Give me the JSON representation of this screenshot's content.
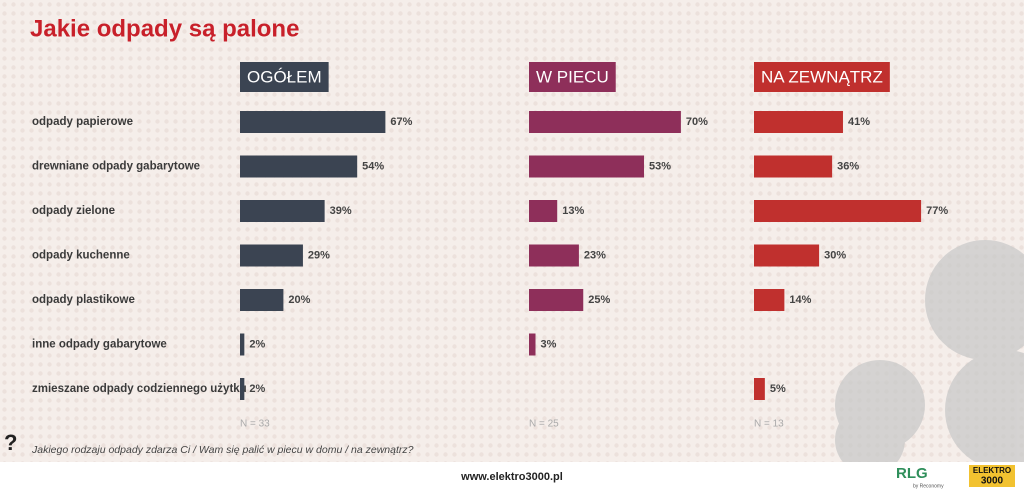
{
  "chart_data": {
    "type": "bar",
    "orientation": "horizontal",
    "title": "Jakie odpady są palone",
    "categories": [
      "odpady papierowe",
      "drewniane odpady gabarytowe",
      "odpady zielone",
      "odpady kuchenne",
      "odpady plastikowe",
      "inne odpady gabarytowe",
      "zmieszane odpady codziennego użytku"
    ],
    "series": [
      {
        "name": "OGÓŁEM",
        "color": "#3b4452",
        "n_label": "N = 33",
        "values": [
          67,
          54,
          39,
          29,
          20,
          2,
          2
        ],
        "value_labels": [
          "67%",
          "54%",
          "39%",
          "29%",
          "20%",
          "2%",
          "2%"
        ]
      },
      {
        "name": "W PIECU",
        "color": "#8e2f5a",
        "n_label": "N = 25",
        "values": [
          70,
          53,
          13,
          23,
          25,
          3,
          null
        ],
        "value_labels": [
          "70%",
          "53%",
          "13%",
          "23%",
          "25%",
          "3%",
          null
        ]
      },
      {
        "name": "NA ZEWNĄTRZ",
        "color": "#c0302e",
        "n_label": "N = 13",
        "values": [
          41,
          36,
          77,
          30,
          14,
          null,
          5
        ],
        "value_labels": [
          "41%",
          "36%",
          "77%",
          "30%",
          "14%",
          null,
          "5%"
        ]
      }
    ],
    "question_mark": "?",
    "question": "Jakiego rodzaju odpady zdarza Ci / Wam się palić w piecu w domu / na zewnątrz?"
  },
  "footer": {
    "url": "www.elektro3000.pl",
    "logo_rlg": "RLG",
    "logo_rlg_sub": "by Reconomy",
    "logo_elektro_1": "ELEKTRO",
    "logo_elektro_2": "3000"
  }
}
